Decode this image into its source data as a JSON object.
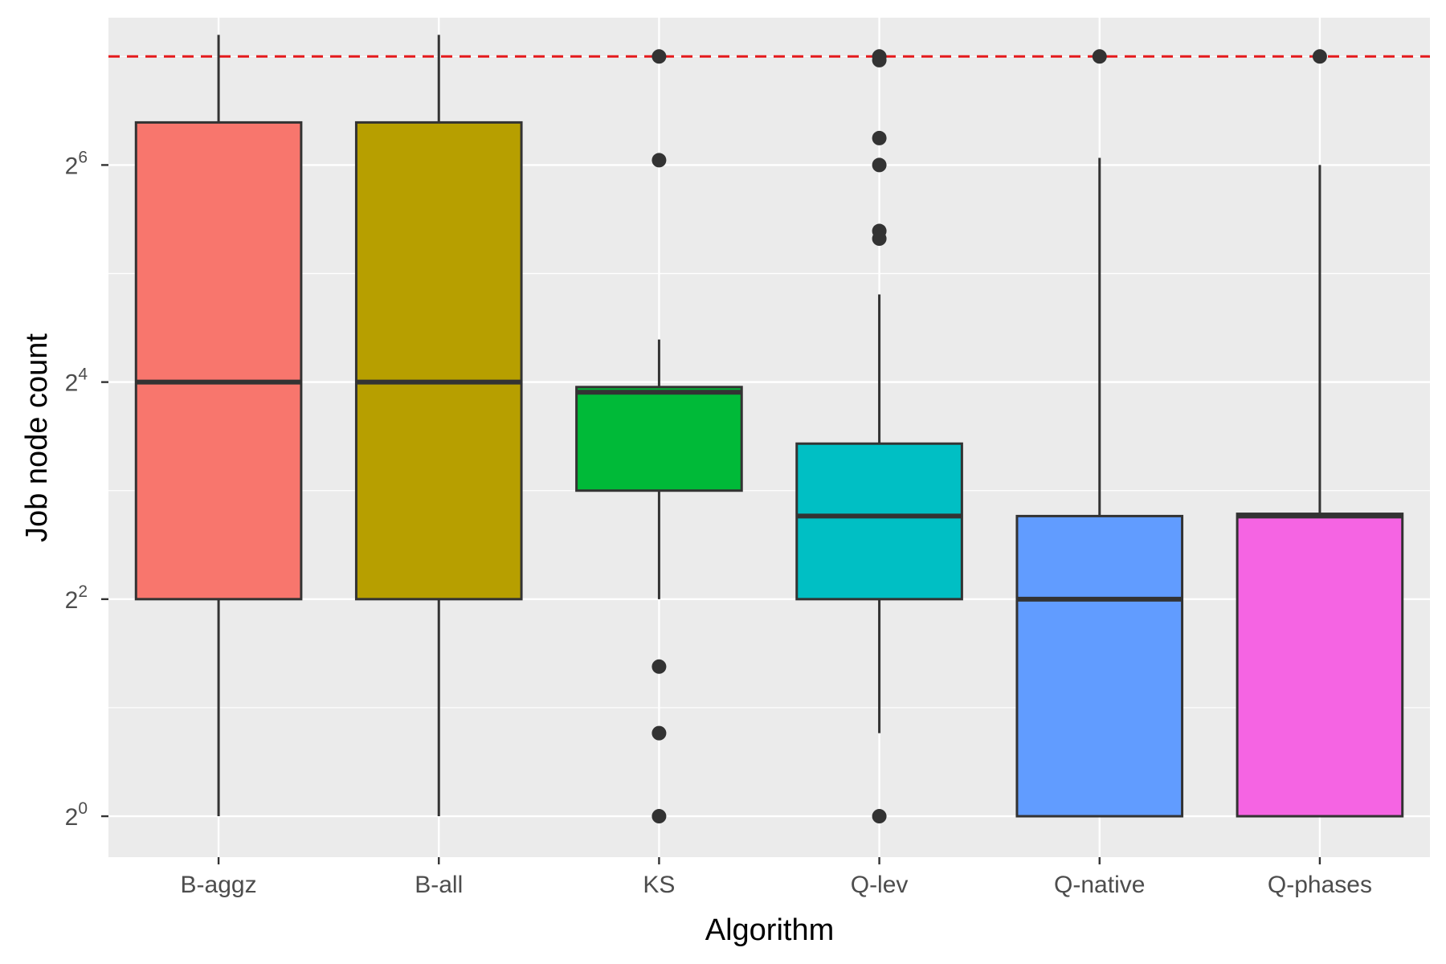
{
  "chart_data": {
    "type": "boxplot",
    "xlabel": "Algorithm",
    "ylabel": "Job node count",
    "y_scale": "log2",
    "y_ticks": [
      {
        "base": "2",
        "exp": "0",
        "value": 1
      },
      {
        "base": "2",
        "exp": "2",
        "value": 4
      },
      {
        "base": "2",
        "exp": "4",
        "value": 16
      },
      {
        "base": "2",
        "exp": "6",
        "value": 64
      }
    ],
    "ylim": [
      0.77,
      164
    ],
    "grid": true,
    "reference_line": {
      "y": 128,
      "color": "#e41a1c",
      "style": "dashed"
    },
    "categories": [
      "B-aggz",
      "B-all",
      "KS",
      "Q-lev",
      "Q-native",
      "Q-phases"
    ],
    "colors": [
      "#F8766D",
      "#B79F00",
      "#00BA38",
      "#00BFC4",
      "#619CFF",
      "#F564E3"
    ],
    "boxes": [
      {
        "category": "B-aggz",
        "q1": 4,
        "median": 16,
        "q3": 84,
        "whisker_low": 1,
        "whisker_high": 147,
        "outliers": []
      },
      {
        "category": "B-all",
        "q1": 4,
        "median": 16,
        "q3": 84,
        "whisker_low": 1,
        "whisker_high": 147,
        "outliers": []
      },
      {
        "category": "KS",
        "q1": 8,
        "median": 15,
        "q3": 15.5,
        "whisker_low": 4,
        "whisker_high": 21,
        "outliers": [
          128,
          66,
          2.6,
          1.7,
          1
        ]
      },
      {
        "category": "Q-lev",
        "q1": 4,
        "median": 6.8,
        "q3": 10.8,
        "whisker_low": 1.7,
        "whisker_high": 28,
        "outliers": [
          128,
          125,
          76,
          64,
          42,
          40,
          1
        ]
      },
      {
        "category": "Q-native",
        "q1": 1,
        "median": 4,
        "q3": 6.8,
        "whisker_low": 1,
        "whisker_high": 67,
        "outliers": [
          128
        ]
      },
      {
        "category": "Q-phases",
        "q1": 1,
        "median": 6.8,
        "q3": 6.9,
        "whisker_low": 1,
        "whisker_high": 64,
        "outliers": [
          128
        ]
      }
    ]
  }
}
